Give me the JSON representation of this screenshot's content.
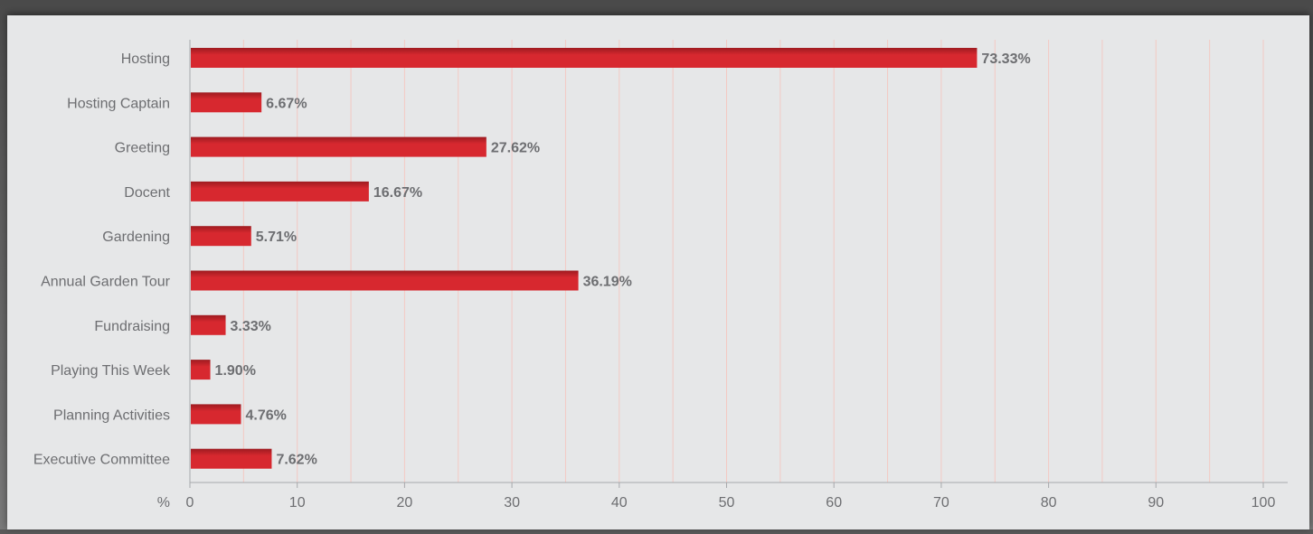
{
  "chart_data": {
    "type": "bar",
    "orientation": "horizontal",
    "categories": [
      "Hosting",
      "Hosting Captain",
      "Greeting",
      "Docent",
      "Gardening",
      "Annual Garden Tour",
      "Fundraising",
      "Playing This Week",
      "Planning Activities",
      "Executive Committee"
    ],
    "values": [
      73.33,
      6.67,
      27.62,
      16.67,
      5.71,
      36.19,
      3.33,
      1.9,
      4.76,
      7.62
    ],
    "value_labels": [
      "73.33%",
      "6.67%",
      "27.62%",
      "16.67%",
      "5.71%",
      "36.19%",
      "3.33%",
      "1.90%",
      "4.76%",
      "7.62%"
    ],
    "xlabel": "%",
    "xlim": [
      0,
      100
    ],
    "xticks": [
      0,
      10,
      20,
      30,
      40,
      50,
      60,
      70,
      80,
      90,
      100
    ],
    "gridlines_every": 5,
    "grid": true,
    "bar_color": "#d7282f",
    "bar_shade_color": "#9e1b20",
    "grid_color": "#f3c9c3",
    "axis_color": "#a7a9ac",
    "text_color": "#6d6e71"
  }
}
